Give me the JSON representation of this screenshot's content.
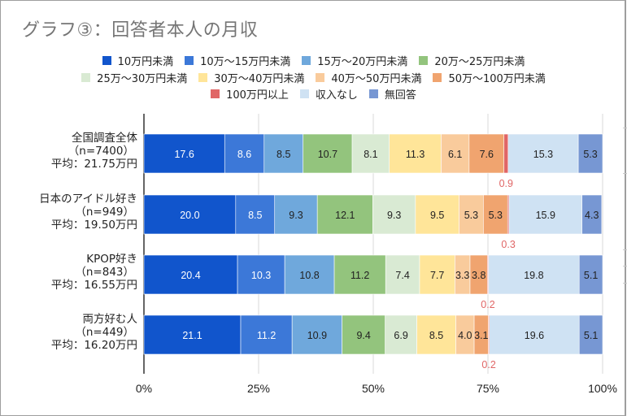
{
  "chart_data": {
    "type": "bar",
    "orientation": "horizontal",
    "stacked": "percent",
    "title": "グラフ③：回答者本人の月収",
    "xlabel": "",
    "ylabel": "",
    "xlim": [
      0,
      100
    ],
    "x_ticks": [
      "0%",
      "25%",
      "50%",
      "75%",
      "100%"
    ],
    "grid": true,
    "legend_position": "top",
    "categories": [
      {
        "name": "全国調査全体",
        "n": "（n=7400）",
        "avg": "平均：21.75万円"
      },
      {
        "name": "日本のアイドル好き",
        "n": "（n=949）",
        "avg": "平均：19.50万円"
      },
      {
        "name": "KPOP好き",
        "n": "（n=843）",
        "avg": "平均：16.55万円"
      },
      {
        "name": "両方好む人",
        "n": "（n=449）",
        "avg": "平均：16.20万円"
      }
    ],
    "series": [
      {
        "name": "10万円未満",
        "color": "#1155cc",
        "label_color": "#ffffff",
        "values": [
          17.6,
          20.0,
          20.4,
          21.1
        ],
        "labels": [
          "17.6",
          "20.0",
          "20.4",
          "21.1"
        ]
      },
      {
        "name": "10万〜15万円未満",
        "color": "#3c78d8",
        "label_color": "#ffffff",
        "values": [
          8.6,
          8.5,
          10.3,
          11.2
        ],
        "labels": [
          "8.6",
          "8.5",
          "10.3",
          "11.2"
        ]
      },
      {
        "name": "15万〜20万円未満",
        "color": "#6fa8dc",
        "label_color": "#222222",
        "values": [
          8.5,
          9.3,
          10.8,
          10.9
        ],
        "labels": [
          "8.5",
          "9.3",
          "10.8",
          "10.9"
        ]
      },
      {
        "name": "20万〜25万円未満",
        "color": "#93c47d",
        "label_color": "#222222",
        "values": [
          10.7,
          12.1,
          11.2,
          9.4
        ],
        "labels": [
          "10.7",
          "12.1",
          "11.2",
          "9.4"
        ]
      },
      {
        "name": "25万〜30万円未満",
        "color": "#d9ead3",
        "label_color": "#222222",
        "values": [
          8.1,
          9.3,
          7.4,
          6.9
        ],
        "labels": [
          "8.1",
          "9.3",
          "7.4",
          "6.9"
        ]
      },
      {
        "name": "30万〜40万円未満",
        "color": "#ffe599",
        "label_color": "#222222",
        "values": [
          11.3,
          9.5,
          7.7,
          8.5
        ],
        "labels": [
          "11.3",
          "9.5",
          "7.7",
          "8.5"
        ]
      },
      {
        "name": "40万〜50万円未満",
        "color": "#f9cb9c",
        "label_color": "#222222",
        "values": [
          6.1,
          5.3,
          3.3,
          4.0
        ],
        "labels": [
          "6.1",
          "5.3",
          "3.3",
          "4.0"
        ]
      },
      {
        "name": "50万〜100万円未満",
        "color": "#f0a46f",
        "label_color": "#222222",
        "values": [
          7.6,
          5.3,
          3.8,
          3.1
        ],
        "labels": [
          "7.6",
          "5.3",
          "3.8",
          "3.1"
        ]
      },
      {
        "name": "100万円以上",
        "color": "#e06666",
        "label_color": "#e06666",
        "values": [
          0.9,
          0.3,
          0.2,
          0.2
        ],
        "labels": [
          "0.9",
          "0.3",
          "0.2",
          "0.2"
        ],
        "label_position": "below"
      },
      {
        "name": "収入なし",
        "color": "#cfe2f3",
        "label_color": "#222222",
        "values": [
          15.3,
          15.9,
          19.8,
          19.6
        ],
        "labels": [
          "15.3",
          "15.9",
          "19.8",
          "19.6"
        ]
      },
      {
        "name": "無回答",
        "color": "#7797d3",
        "label_color": "#222222",
        "values": [
          5.3,
          4.3,
          5.1,
          5.1
        ],
        "labels": [
          "5.3",
          "4.3",
          "5.1",
          "5.1"
        ]
      }
    ]
  }
}
